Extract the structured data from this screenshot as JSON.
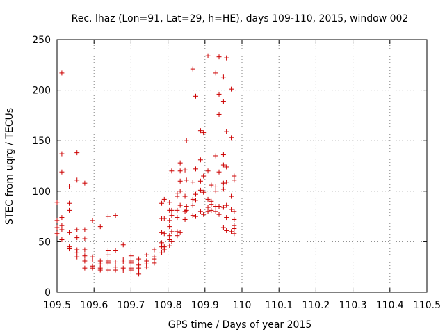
{
  "chart_data": {
    "type": "scatter",
    "title": "Rec. lhaz (Lon=91, Lat=29, h=HE), days 109-110, 2015, window 002",
    "xlabel": "GPS time / Days of year 2015",
    "ylabel": "STEC from uqrg / TECUs",
    "xlim": [
      109.5,
      110.5
    ],
    "ylim": [
      0,
      250
    ],
    "xticks": [
      109.5,
      109.6,
      109.7,
      109.8,
      109.9,
      110.0,
      110.1,
      110.2,
      110.3,
      110.4,
      110.5
    ],
    "xtick_labels": [
      "109.5",
      "109.6",
      "109.7",
      "109.8",
      "109.9",
      "110",
      "110.1",
      "110.2",
      "110.3",
      "110.4",
      "110.5"
    ],
    "yticks": [
      0,
      50,
      100,
      150,
      200,
      250
    ],
    "ytick_labels": [
      "0",
      "50",
      "100",
      "150",
      "200",
      "250"
    ],
    "grid": true,
    "marker": "+",
    "color": "#cc0000",
    "points": [
      [
        109.5,
        89
      ],
      [
        109.5,
        71
      ],
      [
        109.5,
        64
      ],
      [
        109.5,
        58
      ],
      [
        109.513,
        217
      ],
      [
        109.513,
        137
      ],
      [
        109.513,
        119
      ],
      [
        109.513,
        74
      ],
      [
        109.513,
        66
      ],
      [
        109.513,
        62
      ],
      [
        109.513,
        52
      ],
      [
        109.533,
        105
      ],
      [
        109.533,
        88
      ],
      [
        109.533,
        81
      ],
      [
        109.533,
        59
      ],
      [
        109.533,
        45
      ],
      [
        109.533,
        43
      ],
      [
        109.554,
        138
      ],
      [
        109.554,
        111
      ],
      [
        109.554,
        62
      ],
      [
        109.554,
        54
      ],
      [
        109.554,
        42
      ],
      [
        109.554,
        39
      ],
      [
        109.554,
        35
      ],
      [
        109.575,
        108
      ],
      [
        109.575,
        62
      ],
      [
        109.575,
        53
      ],
      [
        109.575,
        42
      ],
      [
        109.575,
        36
      ],
      [
        109.575,
        31
      ],
      [
        109.575,
        24
      ],
      [
        109.596,
        71
      ],
      [
        109.596,
        35
      ],
      [
        109.596,
        32
      ],
      [
        109.596,
        26
      ],
      [
        109.596,
        24
      ],
      [
        109.617,
        65
      ],
      [
        109.617,
        31
      ],
      [
        109.617,
        28
      ],
      [
        109.617,
        24
      ],
      [
        109.617,
        22
      ],
      [
        109.638,
        75
      ],
      [
        109.638,
        41
      ],
      [
        109.638,
        37
      ],
      [
        109.638,
        31
      ],
      [
        109.638,
        29
      ],
      [
        109.638,
        22
      ],
      [
        109.658,
        76
      ],
      [
        109.658,
        41
      ],
      [
        109.658,
        30
      ],
      [
        109.658,
        25
      ],
      [
        109.658,
        22
      ],
      [
        109.679,
        47
      ],
      [
        109.679,
        32
      ],
      [
        109.679,
        30
      ],
      [
        109.679,
        24
      ],
      [
        109.679,
        21
      ],
      [
        109.7,
        36
      ],
      [
        109.7,
        31
      ],
      [
        109.7,
        29
      ],
      [
        109.7,
        24
      ],
      [
        109.7,
        22
      ],
      [
        109.721,
        33
      ],
      [
        109.721,
        27
      ],
      [
        109.721,
        24
      ],
      [
        109.721,
        21
      ],
      [
        109.721,
        18
      ],
      [
        109.742,
        37
      ],
      [
        109.742,
        31
      ],
      [
        109.742,
        28
      ],
      [
        109.742,
        25
      ],
      [
        109.763,
        42
      ],
      [
        109.763,
        35
      ],
      [
        109.763,
        33
      ],
      [
        109.763,
        29
      ],
      [
        109.783,
        88
      ],
      [
        109.783,
        73
      ],
      [
        109.783,
        59
      ],
      [
        109.783,
        49
      ],
      [
        109.783,
        45
      ],
      [
        109.783,
        39
      ],
      [
        109.79,
        92
      ],
      [
        109.79,
        73
      ],
      [
        109.79,
        58
      ],
      [
        109.79,
        45
      ],
      [
        109.79,
        42
      ],
      [
        109.804,
        89
      ],
      [
        109.804,
        81
      ],
      [
        109.804,
        71
      ],
      [
        109.804,
        65
      ],
      [
        109.804,
        56
      ],
      [
        109.804,
        52
      ],
      [
        109.804,
        46
      ],
      [
        109.81,
        120
      ],
      [
        109.81,
        81
      ],
      [
        109.81,
        76
      ],
      [
        109.81,
        60
      ],
      [
        109.81,
        50
      ],
      [
        109.825,
        98
      ],
      [
        109.825,
        95
      ],
      [
        109.825,
        81
      ],
      [
        109.825,
        74
      ],
      [
        109.825,
        60
      ],
      [
        109.825,
        56
      ],
      [
        109.833,
        128
      ],
      [
        109.833,
        120
      ],
      [
        109.833,
        110
      ],
      [
        109.833,
        100
      ],
      [
        109.833,
        86
      ],
      [
        109.833,
        59
      ],
      [
        109.846,
        121
      ],
      [
        109.846,
        95
      ],
      [
        109.846,
        80
      ],
      [
        109.846,
        72
      ],
      [
        109.85,
        150
      ],
      [
        109.85,
        111
      ],
      [
        109.85,
        85
      ],
      [
        109.85,
        81
      ],
      [
        109.867,
        221
      ],
      [
        109.867,
        109
      ],
      [
        109.867,
        92
      ],
      [
        109.867,
        86
      ],
      [
        109.867,
        76
      ],
      [
        109.875,
        194
      ],
      [
        109.875,
        122
      ],
      [
        109.875,
        97
      ],
      [
        109.875,
        91
      ],
      [
        109.875,
        75
      ],
      [
        109.888,
        160
      ],
      [
        109.888,
        131
      ],
      [
        109.888,
        110
      ],
      [
        109.888,
        101
      ],
      [
        109.888,
        80
      ],
      [
        109.896,
        158
      ],
      [
        109.896,
        115
      ],
      [
        109.896,
        99
      ],
      [
        109.896,
        77
      ],
      [
        109.908,
        234
      ],
      [
        109.908,
        120
      ],
      [
        109.908,
        92
      ],
      [
        109.908,
        84
      ],
      [
        109.908,
        80
      ],
      [
        109.917,
        106
      ],
      [
        109.917,
        90
      ],
      [
        109.917,
        87
      ],
      [
        109.917,
        81
      ],
      [
        109.929,
        217
      ],
      [
        109.929,
        135
      ],
      [
        109.929,
        105
      ],
      [
        109.929,
        100
      ],
      [
        109.929,
        85
      ],
      [
        109.929,
        80
      ],
      [
        109.938,
        233
      ],
      [
        109.938,
        196
      ],
      [
        109.938,
        176
      ],
      [
        109.938,
        119
      ],
      [
        109.938,
        85
      ],
      [
        109.938,
        77
      ],
      [
        109.95,
        213
      ],
      [
        109.95,
        189
      ],
      [
        109.95,
        136
      ],
      [
        109.95,
        126
      ],
      [
        109.95,
        108
      ],
      [
        109.95,
        102
      ],
      [
        109.95,
        84
      ],
      [
        109.95,
        64
      ],
      [
        109.958,
        232
      ],
      [
        109.958,
        159
      ],
      [
        109.958,
        124
      ],
      [
        109.958,
        109
      ],
      [
        109.958,
        86
      ],
      [
        109.958,
        74
      ],
      [
        109.958,
        61
      ],
      [
        109.971,
        201
      ],
      [
        109.971,
        153
      ],
      [
        109.971,
        95
      ],
      [
        109.971,
        82
      ],
      [
        109.971,
        60
      ],
      [
        109.979,
        115
      ],
      [
        109.979,
        111
      ],
      [
        109.979,
        80
      ],
      [
        109.979,
        72
      ],
      [
        109.979,
        66
      ],
      [
        109.979,
        63
      ],
      [
        109.979,
        58
      ]
    ]
  }
}
